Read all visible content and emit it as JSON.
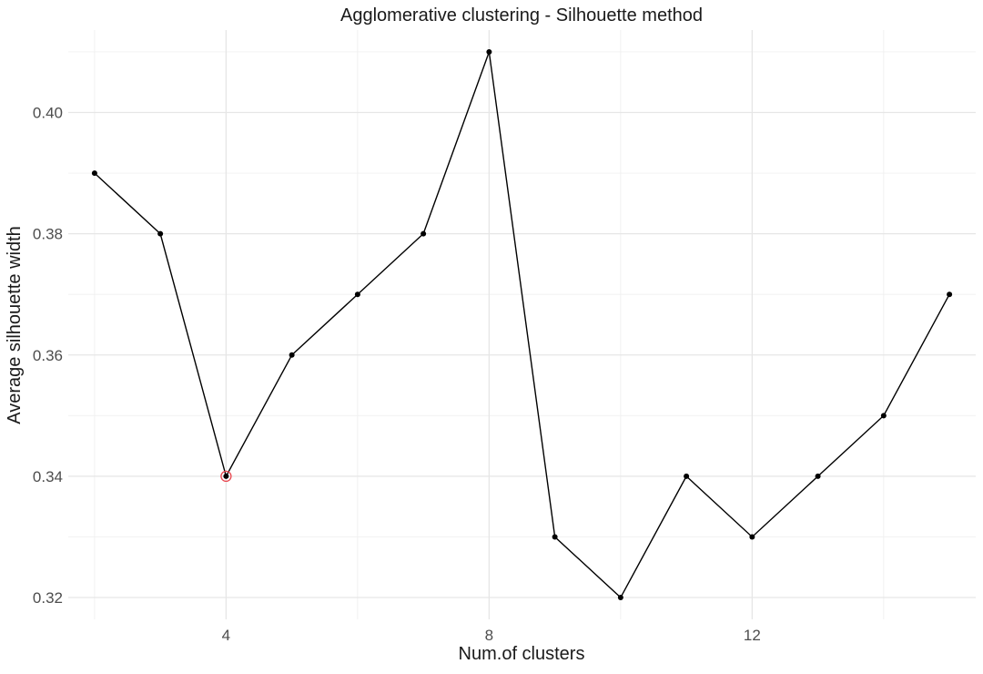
{
  "chart_data": {
    "type": "line",
    "title": "Agglomerative clustering - Silhouette method",
    "xlabel": "Num.of clusters",
    "ylabel": "Average silhouette width",
    "x": [
      2,
      3,
      4,
      5,
      6,
      7,
      8,
      9,
      10,
      11,
      12,
      13,
      14,
      15
    ],
    "series": [
      {
        "values": [
          0.39,
          0.38,
          0.34,
          0.36,
          0.37,
          0.38,
          0.41,
          0.33,
          0.32,
          0.34,
          0.33,
          0.34,
          0.35,
          0.37
        ]
      }
    ],
    "highlight": {
      "x": 4,
      "y": 0.34,
      "color": "#e8474f"
    },
    "xlim": [
      1.6,
      15.4
    ],
    "ylim": [
      0.3164,
      0.4136
    ],
    "xticks": [
      4,
      8,
      12
    ],
    "xtick_labels": [
      "4",
      "8",
      "12"
    ],
    "yticks": [
      0.32,
      0.34,
      0.36,
      0.38,
      0.4
    ],
    "ytick_labels": [
      "0.32",
      "0.34",
      "0.36",
      "0.38",
      "0.40"
    ],
    "grid": true,
    "line_color": "#000000",
    "point_color": "#000000"
  }
}
